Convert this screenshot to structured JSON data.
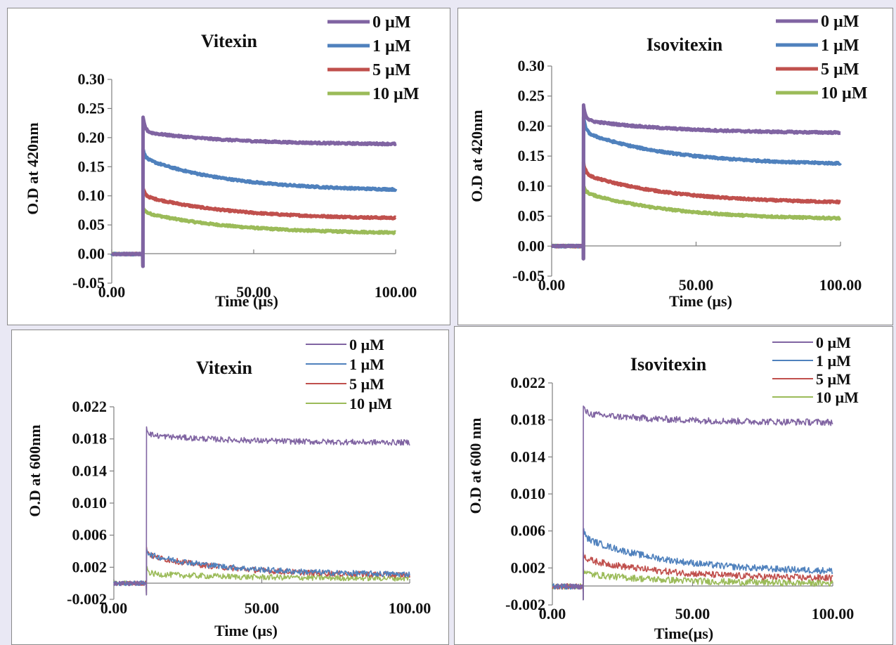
{
  "colors": {
    "purple": "#8064a2",
    "blue": "#4f81bd",
    "red": "#c0504d",
    "green": "#9bbb59"
  },
  "chart_data": [
    {
      "type": "line",
      "title": "Vitexin",
      "xlabel": "Time (µs)",
      "ylabel": "O.D at 420nm",
      "xlim": [
        0,
        100
      ],
      "ylim": [
        -0.05,
        0.3
      ],
      "xticks": [
        "0.00",
        "50.00",
        "100.00"
      ],
      "yticks": [
        "-0.05",
        "0.00",
        "0.05",
        "0.10",
        "0.15",
        "0.20",
        "0.25",
        "0.30"
      ],
      "legend_position": "top-right",
      "pulse_time": 11,
      "series": [
        {
          "name": "0 µM",
          "color": "#8064a2",
          "baseline": 0.0,
          "peak": 0.235,
          "plateau": 0.21,
          "end": 0.188
        },
        {
          "name": "1 µM",
          "color": "#4f81bd",
          "baseline": 0.0,
          "peak": 0.18,
          "plateau": 0.165,
          "end": 0.108
        },
        {
          "name": "5 µM",
          "color": "#c0504d",
          "baseline": 0.0,
          "peak": 0.113,
          "plateau": 0.1,
          "end": 0.06
        },
        {
          "name": "10 µM",
          "color": "#9bbb59",
          "baseline": 0.0,
          "peak": 0.08,
          "plateau": 0.072,
          "end": 0.035
        }
      ]
    },
    {
      "type": "line",
      "title": "Isovitexin",
      "xlabel": "Time (µs)",
      "ylabel": "O.D at 420nm",
      "xlim": [
        0,
        100
      ],
      "ylim": [
        -0.05,
        0.3
      ],
      "xticks": [
        "0.00",
        "50.00",
        "100.00"
      ],
      "yticks": [
        "-0.05",
        "0.00",
        "0.05",
        "0.10",
        "0.15",
        "0.20",
        "0.25",
        "0.30"
      ],
      "legend_position": "top-right",
      "pulse_time": 11,
      "series": [
        {
          "name": "0 µM",
          "color": "#8064a2",
          "baseline": 0.0,
          "peak": 0.235,
          "plateau": 0.21,
          "end": 0.188
        },
        {
          "name": "1 µM",
          "color": "#4f81bd",
          "baseline": 0.0,
          "peak": 0.215,
          "plateau": 0.19,
          "end": 0.135
        },
        {
          "name": "5 µM",
          "color": "#c0504d",
          "baseline": 0.0,
          "peak": 0.14,
          "plateau": 0.12,
          "end": 0.071
        },
        {
          "name": "10 µM",
          "color": "#9bbb59",
          "baseline": 0.0,
          "peak": 0.1,
          "plateau": 0.09,
          "end": 0.044
        }
      ]
    },
    {
      "type": "line",
      "title": "Vitexin",
      "xlabel": "Time (µs)",
      "ylabel": "O.D  at 600nm",
      "xlim": [
        0,
        100
      ],
      "ylim": [
        -0.002,
        0.022
      ],
      "xticks": [
        "0.00",
        "50.00",
        "100.00"
      ],
      "yticks": [
        "-0.002",
        "0.002",
        "0.006",
        "0.010",
        "0.014",
        "0.018",
        "0.022"
      ],
      "legend_position": "top-right",
      "pulse_time": 11,
      "series": [
        {
          "name": "0 µM",
          "color": "#8064a2",
          "baseline": 0.0,
          "peak": 0.0195,
          "plateau": 0.0185,
          "end": 0.0175
        },
        {
          "name": "1 µM",
          "color": "#4f81bd",
          "baseline": 0.0,
          "peak": 0.0043,
          "plateau": 0.0036,
          "end": 0.001
        },
        {
          "name": "5 µM",
          "color": "#c0504d",
          "baseline": 0.0,
          "peak": 0.0045,
          "plateau": 0.0035,
          "end": 0.0009
        },
        {
          "name": "10 µM",
          "color": "#9bbb59",
          "baseline": 0.0,
          "peak": 0.0019,
          "plateau": 0.0012,
          "end": 0.0006
        }
      ]
    },
    {
      "type": "line",
      "title": "Isovitexin",
      "xlabel": "Time(µs)",
      "ylabel": "O.D at 600 nm",
      "xlim": [
        0,
        100
      ],
      "ylim": [
        -0.002,
        0.022
      ],
      "xticks": [
        "0.00",
        "50.00",
        "100.00"
      ],
      "yticks": [
        "-0.002",
        "0.002",
        "0.006",
        "0.010",
        "0.014",
        "0.018",
        "0.022"
      ],
      "legend_position": "top-right",
      "pulse_time": 11,
      "series": [
        {
          "name": "0 µM",
          "color": "#8064a2",
          "baseline": 0.0,
          "peak": 0.0195,
          "plateau": 0.0187,
          "end": 0.0177
        },
        {
          "name": "1 µM",
          "color": "#4f81bd",
          "baseline": 0.0,
          "peak": 0.0062,
          "plateau": 0.0053,
          "end": 0.0015
        },
        {
          "name": "5 µM",
          "color": "#c0504d",
          "baseline": 0.0,
          "peak": 0.0037,
          "plateau": 0.003,
          "end": 0.0008
        },
        {
          "name": "10 µM",
          "color": "#9bbb59",
          "baseline": 0.0,
          "peak": 0.002,
          "plateau": 0.0014,
          "end": 0.0003
        }
      ]
    }
  ]
}
